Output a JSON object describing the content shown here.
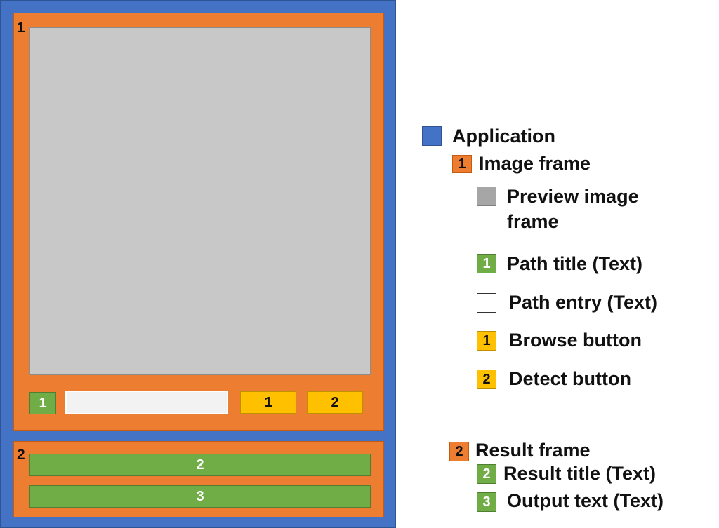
{
  "colors": {
    "application": "#4472C4",
    "frame": "#ED7D31",
    "preview": "#C8C8C8",
    "text_widget": "#70AD47",
    "entry": "#F2F2F2",
    "button": "#FFC000"
  },
  "diagram": {
    "image_frame_number": "1",
    "path_title_number": "1",
    "browse_button_number": "1",
    "detect_button_number": "2",
    "result_frame_number": "2",
    "result_title_number": "2",
    "output_text_number": "3"
  },
  "legend": {
    "application": "Application",
    "image_frame_num": "1",
    "image_frame": "Image frame",
    "preview_line1": "Preview image",
    "preview_line2": "frame",
    "path_title_num": "1",
    "path_title": "Path title (Text)",
    "path_entry": "Path entry (Text)",
    "browse_num": "1",
    "browse": "Browse button",
    "detect_num": "2",
    "detect": "Detect button",
    "result_frame_num": "2",
    "result_frame": "Result frame",
    "result_title_num": "2",
    "result_title": "Result title (Text)",
    "output_text_num": "3",
    "output_text": "Output text (Text)"
  }
}
